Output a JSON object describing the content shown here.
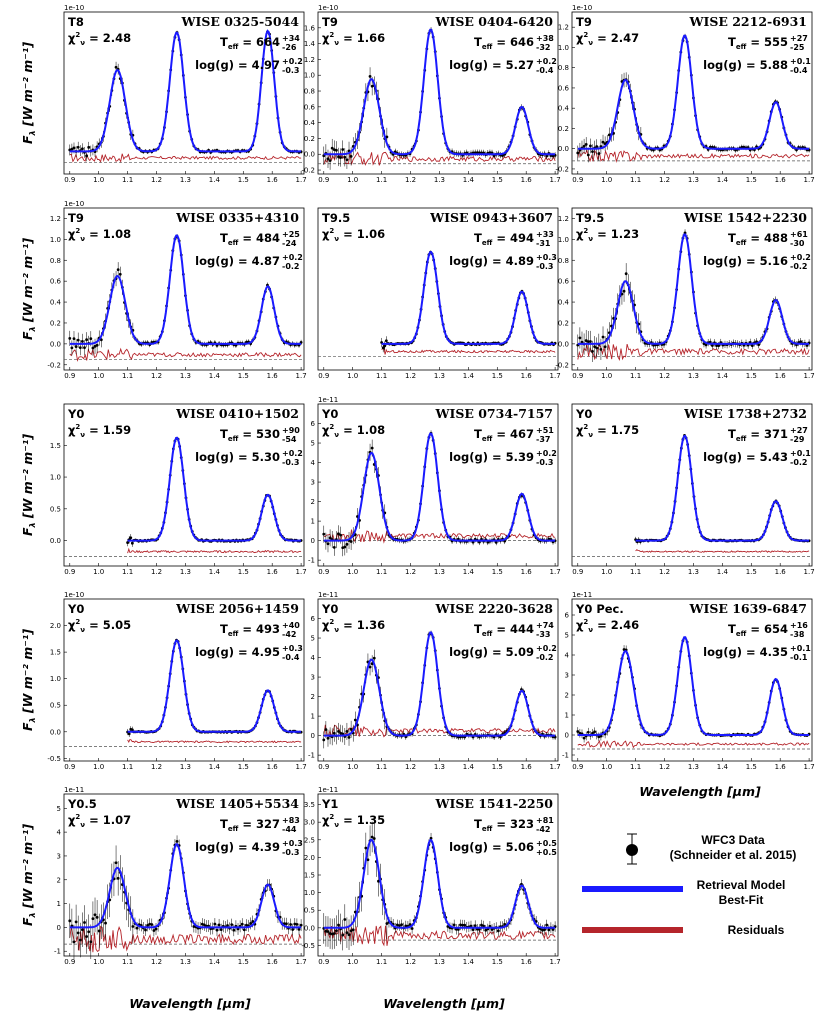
{
  "figure": {
    "x_axis_label": "Wavelength [μm]",
    "y_axis_label": "F",
    "y_axis_label_sub": "λ",
    "y_axis_label_unit": " [W m⁻² m⁻¹]",
    "legend": {
      "data": "WFC3 Data",
      "data_ref": "(Schneider et al. 2015)",
      "model": "Retrieval Model",
      "model2": "Best-Fit",
      "resid": "Residuals"
    },
    "colors": {
      "data": "#000000",
      "model": "#1a1aff",
      "residual": "#b5252b",
      "zero_line": "#555555"
    }
  },
  "chart_data": [
    {
      "type": "line",
      "title": "WISE 0325-5044",
      "spectral_type": "T8",
      "chi2": "2.48",
      "teff": "664",
      "teff_up": "+34",
      "teff_dn": "-26",
      "logg": "4.97",
      "logg_up": "+0.2",
      "logg_dn": "-0.3",
      "scale": "1e-10",
      "x_ticks": [
        "0.9",
        "1.0",
        "1.1",
        "1.2",
        "1.3",
        "1.4",
        "1.5",
        "1.6",
        "1.7"
      ],
      "y_ticks": [],
      "xlim": [
        0.88,
        1.71
      ],
      "ylim": [
        -0.3,
        1.85
      ],
      "x_start": 0.9,
      "peaks": [
        1.08,
        1.58,
        1.6
      ],
      "resid_level": -0.15,
      "noise": 0.05,
      "series": [
        {
          "name": "WFC3 Data"
        },
        {
          "name": "Retrieval Model Best-Fit"
        },
        {
          "name": "Residuals"
        }
      ]
    },
    {
      "type": "line",
      "title": "WISE 0404-6420",
      "spectral_type": "T9",
      "chi2": "1.66",
      "teff": "646",
      "teff_up": "+38",
      "teff_dn": "-32",
      "logg": "5.27",
      "logg_up": "+0.2",
      "logg_dn": "-0.4",
      "scale": "1e-10",
      "x_ticks": [
        "0.9",
        "1.0",
        "1.1",
        "1.2",
        "1.3",
        "1.4",
        "1.5",
        "1.6",
        "1.7"
      ],
      "y_ticks": [
        "-0.2",
        "0.0",
        "0.2",
        "0.4",
        "0.6",
        "0.8",
        "1.0",
        "1.2",
        "1.4",
        "1.6"
      ],
      "xlim": [
        0.88,
        1.71
      ],
      "ylim": [
        -0.25,
        1.8
      ],
      "x_start": 0.9,
      "peaks": [
        0.95,
        1.58,
        0.6
      ],
      "resid_level": -0.12,
      "noise": 0.08,
      "series": [
        {
          "name": "WFC3 Data"
        },
        {
          "name": "Retrieval Model Best-Fit"
        },
        {
          "name": "Residuals"
        }
      ]
    },
    {
      "type": "line",
      "title": "WISE 2212-6931",
      "spectral_type": "T9",
      "chi2": "2.47",
      "teff": "555",
      "teff_up": "+27",
      "teff_dn": "-25",
      "logg": "5.88",
      "logg_up": "+0.1",
      "logg_dn": "-0.4",
      "scale": "1e-10",
      "x_ticks": [
        "0.9",
        "1.0",
        "1.1",
        "1.2",
        "1.3",
        "1.4",
        "1.5",
        "1.6",
        "1.7"
      ],
      "y_ticks": [
        "-0.2",
        "0.0",
        "0.2",
        "0.4",
        "0.6",
        "0.8",
        "1.0",
        "1.2"
      ],
      "xlim": [
        0.88,
        1.71
      ],
      "ylim": [
        -0.25,
        1.35
      ],
      "x_start": 0.9,
      "peaks": [
        0.68,
        1.12,
        0.46
      ],
      "resid_level": -0.12,
      "noise": 0.05,
      "series": [
        {
          "name": "WFC3 Data"
        },
        {
          "name": "Retrieval Model Best-Fit"
        },
        {
          "name": "Residuals"
        }
      ]
    },
    {
      "type": "line",
      "title": "WISE 0335+4310",
      "spectral_type": "T9",
      "chi2": "1.08",
      "teff": "484",
      "teff_up": "+25",
      "teff_dn": "-24",
      "logg": "4.87",
      "logg_up": "+0.2",
      "logg_dn": "-0.2",
      "scale": "1e-10",
      "x_ticks": [
        "0.9",
        "1.0",
        "1.1",
        "1.2",
        "1.3",
        "1.4",
        "1.5",
        "1.6",
        "1.7"
      ],
      "y_ticks": [
        "-0.2",
        "0.0",
        "0.2",
        "0.4",
        "0.6",
        "0.8",
        "1.0",
        "1.2"
      ],
      "xlim": [
        0.88,
        1.71
      ],
      "ylim": [
        -0.25,
        1.3
      ],
      "x_start": 0.9,
      "peaks": [
        0.65,
        1.04,
        0.55
      ],
      "resid_level": -0.15,
      "noise": 0.05,
      "series": [
        {
          "name": "WFC3 Data"
        },
        {
          "name": "Retrieval Model Best-Fit"
        },
        {
          "name": "Residuals"
        }
      ]
    },
    {
      "type": "line",
      "title": "WISE 0943+3607",
      "spectral_type": "T9.5",
      "chi2": "1.06",
      "teff": "494",
      "teff_up": "+33",
      "teff_dn": "-31",
      "logg": "4.89",
      "logg_up": "+0.3",
      "logg_dn": "-0.3",
      "scale": "",
      "x_ticks": [
        "0.9",
        "1.0",
        "1.1",
        "1.2",
        "1.3",
        "1.4",
        "1.5",
        "1.6",
        "1.7"
      ],
      "y_ticks": [],
      "xlim": [
        0.88,
        1.71
      ],
      "ylim": [
        -0.25,
        1.3
      ],
      "x_start": 1.1,
      "peaks": [
        0,
        0.88,
        0.5
      ],
      "resid_level": -0.12,
      "noise": 0.03,
      "series": [
        {
          "name": "WFC3 Data"
        },
        {
          "name": "Retrieval Model Best-Fit"
        },
        {
          "name": "Residuals"
        }
      ]
    },
    {
      "type": "line",
      "title": "WISE 1542+2230",
      "spectral_type": "T9.5",
      "chi2": "1.23",
      "teff": "488",
      "teff_up": "+61",
      "teff_dn": "-30",
      "logg": "5.16",
      "logg_up": "+0.2",
      "logg_dn": "-0.2",
      "scale": "",
      "x_ticks": [
        "0.9",
        "1.0",
        "1.1",
        "1.2",
        "1.3",
        "1.4",
        "1.5",
        "1.6",
        "1.7"
      ],
      "y_ticks": [
        "-0.2",
        "0.0",
        "0.2",
        "0.4",
        "0.6",
        "0.8",
        "1.0",
        "1.2"
      ],
      "xlim": [
        0.88,
        1.71
      ],
      "ylim": [
        -0.25,
        1.3
      ],
      "x_start": 0.9,
      "peaks": [
        0.6,
        1.05,
        0.42
      ],
      "resid_level": -0.12,
      "noise": 0.07,
      "series": [
        {
          "name": "WFC3 Data"
        },
        {
          "name": "Retrieval Model Best-Fit"
        },
        {
          "name": "Residuals"
        }
      ]
    },
    {
      "type": "line",
      "title": "WISE 0410+1502",
      "spectral_type": "Y0",
      "chi2": "1.59",
      "teff": "530",
      "teff_up": "+90",
      "teff_dn": "-54",
      "logg": "5.30",
      "logg_up": "+0.2",
      "logg_dn": "-0.3",
      "scale": "",
      "x_ticks": [
        "0.9",
        "1.0",
        "1.1",
        "1.2",
        "1.3",
        "1.4",
        "1.5",
        "1.6",
        "1.7"
      ],
      "y_ticks": [
        "-0.5",
        "0.0",
        "0.5",
        "1.0",
        "1.5"
      ],
      "xlim": [
        0.88,
        1.71
      ],
      "ylim": [
        -0.4,
        2.15
      ],
      "x_start": 1.1,
      "peaks": [
        0,
        1.62,
        0.72
      ],
      "resid_level": -0.25,
      "noise": 0.04,
      "series": [
        {
          "name": "WFC3 Data"
        },
        {
          "name": "Retrieval Model Best-Fit"
        },
        {
          "name": "Residuals"
        }
      ]
    },
    {
      "type": "line",
      "title": "WISE 0734-7157",
      "spectral_type": "Y0",
      "chi2": "1.08",
      "teff": "467",
      "teff_up": "+51",
      "teff_dn": "-37",
      "logg": "5.39",
      "logg_up": "+0.2",
      "logg_dn": "-0.3",
      "scale": "1e-11",
      "x_ticks": [
        "0.9",
        "1.0",
        "1.1",
        "1.2",
        "1.3",
        "1.4",
        "1.5",
        "1.6",
        "1.7"
      ],
      "y_ticks": [
        "-1",
        "0",
        "1",
        "2",
        "3",
        "4",
        "5",
        "6"
      ],
      "xlim": [
        0.88,
        1.71
      ],
      "ylim": [
        -1.3,
        7.0
      ],
      "x_start": 0.9,
      "peaks": [
        4.5,
        5.5,
        2.4
      ],
      "resid_level": 0,
      "noise": 0.3,
      "series": [
        {
          "name": "WFC3 Data"
        },
        {
          "name": "Retrieval Model Best-Fit"
        },
        {
          "name": "Residuals"
        }
      ]
    },
    {
      "type": "line",
      "title": "WISE 1738+2732",
      "spectral_type": "Y0",
      "chi2": "1.75",
      "teff": "371",
      "teff_up": "+27",
      "teff_dn": "-29",
      "logg": "5.43",
      "logg_up": "+0.1",
      "logg_dn": "-0.2",
      "scale": "",
      "x_ticks": [
        "0.9",
        "1.0",
        "1.1",
        "1.2",
        "1.3",
        "1.4",
        "1.5",
        "1.6",
        "1.7"
      ],
      "y_ticks": [],
      "xlim": [
        0.88,
        1.71
      ],
      "ylim": [
        -0.4,
        2.15
      ],
      "x_start": 1.1,
      "peaks": [
        0,
        1.65,
        0.62
      ],
      "resid_level": -0.25,
      "noise": 0.03,
      "series": [
        {
          "name": "WFC3 Data"
        },
        {
          "name": "Retrieval Model Best-Fit"
        },
        {
          "name": "Residuals"
        }
      ]
    },
    {
      "type": "line",
      "title": "WISE 2056+1459",
      "spectral_type": "Y0",
      "chi2": "5.05",
      "teff": "493",
      "teff_up": "+40",
      "teff_dn": "-42",
      "logg": "4.95",
      "logg_up": "+0.3",
      "logg_dn": "-0.4",
      "scale": "1e-10",
      "x_ticks": [
        "0.9",
        "1.0",
        "1.1",
        "1.2",
        "1.3",
        "1.4",
        "1.5",
        "1.6",
        "1.7"
      ],
      "y_ticks": [
        "-0.5",
        "0.0",
        "0.5",
        "1.0",
        "1.5",
        "2.0"
      ],
      "xlim": [
        0.88,
        1.71
      ],
      "ylim": [
        -0.55,
        2.5
      ],
      "x_start": 1.1,
      "peaks": [
        0,
        1.72,
        0.78
      ],
      "resid_level": -0.28,
      "noise": 0.04,
      "series": [
        {
          "name": "WFC3 Data"
        },
        {
          "name": "Retrieval Model Best-Fit"
        },
        {
          "name": "Residuals"
        }
      ]
    },
    {
      "type": "line",
      "title": "WISE 2220-3628",
      "spectral_type": "Y0",
      "chi2": "1.36",
      "teff": "444",
      "teff_up": "+74",
      "teff_dn": "-33",
      "logg": "5.09",
      "logg_up": "+0.2",
      "logg_dn": "-0.2",
      "scale": "1e-11",
      "x_ticks": [
        "0.9",
        "1.0",
        "1.1",
        "1.2",
        "1.3",
        "1.4",
        "1.5",
        "1.6",
        "1.7"
      ],
      "y_ticks": [
        "-1",
        "0",
        "1",
        "2",
        "3",
        "4",
        "5",
        "6"
      ],
      "xlim": [
        0.88,
        1.71
      ],
      "ylim": [
        -1.3,
        7.0
      ],
      "x_start": 0.9,
      "peaks": [
        3.9,
        5.3,
        2.3
      ],
      "resid_level": 0,
      "noise": 0.3,
      "series": [
        {
          "name": "WFC3 Data"
        },
        {
          "name": "Retrieval Model Best-Fit"
        },
        {
          "name": "Residuals"
        }
      ]
    },
    {
      "type": "line",
      "title": "WISE 1639-6847",
      "spectral_type": "Y0 Pec.",
      "chi2": "2.46",
      "teff": "654",
      "teff_up": "+16",
      "teff_dn": "-38",
      "logg": "4.35",
      "logg_up": "+0.1",
      "logg_dn": "-0.1",
      "scale": "1e-11",
      "x_ticks": [
        "0.9",
        "1.0",
        "1.1",
        "1.2",
        "1.3",
        "1.4",
        "1.5",
        "1.6",
        "1.7"
      ],
      "y_ticks": [
        "-1",
        "0",
        "1",
        "2",
        "3",
        "4",
        "5",
        "6"
      ],
      "xlim": [
        0.88,
        1.71
      ],
      "ylim": [
        -1.3,
        6.8
      ],
      "x_start": 0.9,
      "peaks": [
        4.2,
        4.9,
        2.8
      ],
      "resid_level": -0.7,
      "noise": 0.15,
      "series": [
        {
          "name": "WFC3 Data"
        },
        {
          "name": "Retrieval Model Best-Fit"
        },
        {
          "name": "Residuals"
        }
      ]
    },
    {
      "type": "line",
      "title": "WISE 1405+5534",
      "spectral_type": "Y0.5",
      "chi2": "1.07",
      "teff": "327",
      "teff_up": "+83",
      "teff_dn": "-44",
      "logg": "4.39",
      "logg_up": "+0.3",
      "logg_dn": "-0.3",
      "scale": "1e-11",
      "x_ticks": [
        "0.9",
        "1.0",
        "1.1",
        "1.2",
        "1.3",
        "1.4",
        "1.5",
        "1.6",
        "1.7"
      ],
      "y_ticks": [
        "-1",
        "0",
        "1",
        "2",
        "3",
        "4",
        "5"
      ],
      "xlim": [
        0.88,
        1.71
      ],
      "ylim": [
        -1.2,
        5.6
      ],
      "x_start": 0.9,
      "peaks": [
        2.5,
        3.5,
        1.8
      ],
      "resid_level": -0.7,
      "noise": 0.5,
      "series": [
        {
          "name": "WFC3 Data"
        },
        {
          "name": "Retrieval Model Best-Fit"
        },
        {
          "name": "Residuals"
        }
      ]
    },
    {
      "type": "line",
      "title": "WISE 1541-2250",
      "spectral_type": "Y1",
      "chi2": "1.35",
      "teff": "323",
      "teff_up": "+81",
      "teff_dn": "-42",
      "logg": "5.06",
      "logg_up": "+0.5",
      "logg_dn": "+0.5",
      "scale": "1e-11",
      "x_ticks": [
        "0.9",
        "1.0",
        "1.1",
        "1.2",
        "1.3",
        "1.4",
        "1.5",
        "1.6",
        "1.7"
      ],
      "y_ticks": [
        "-0.5",
        "0.0",
        "0.5",
        "1.0",
        "1.5",
        "2.0",
        "2.5",
        "3.0",
        "3.5"
      ],
      "xlim": [
        0.88,
        1.71
      ],
      "ylim": [
        -0.8,
        3.8
      ],
      "x_start": 0.9,
      "peaks": [
        2.5,
        2.5,
        1.2
      ],
      "resid_level": -0.35,
      "noise": 0.3,
      "series": [
        {
          "name": "WFC3 Data"
        },
        {
          "name": "Retrieval Model Best-Fit"
        },
        {
          "name": "Residuals"
        }
      ]
    }
  ]
}
